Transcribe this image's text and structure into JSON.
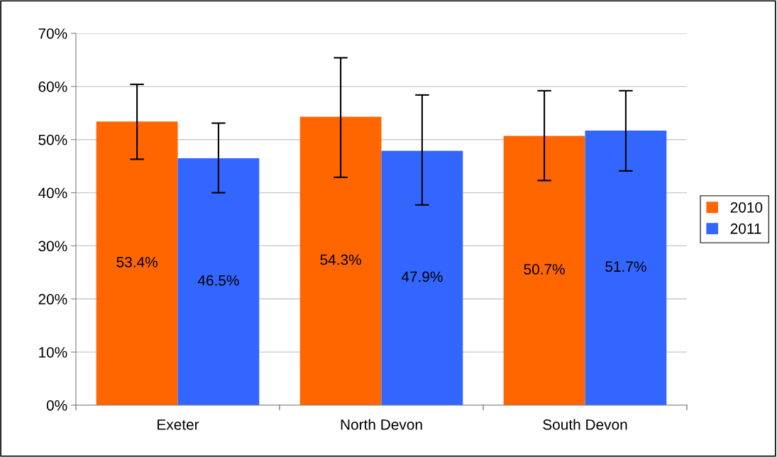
{
  "chart_data": {
    "type": "bar",
    "categories": [
      "Exeter",
      "North Devon",
      "South Devon"
    ],
    "series": [
      {
        "name": "2010",
        "color": "#ff6600",
        "values": [
          53.4,
          54.3,
          50.7
        ],
        "value_labels": [
          "53.4%",
          "54.3%",
          "50.7%"
        ],
        "errors": [
          [
            46.3,
            60.4
          ],
          [
            42.9,
            65.4
          ],
          [
            42.3,
            59.2
          ]
        ]
      },
      {
        "name": "2011",
        "color": "#3366ff",
        "values": [
          46.5,
          47.9,
          51.7
        ],
        "value_labels": [
          "46.5%",
          "47.9%",
          "51.7%"
        ],
        "errors": [
          [
            40.0,
            53.1
          ],
          [
            37.7,
            58.4
          ],
          [
            44.1,
            59.2
          ]
        ]
      }
    ],
    "ylim": [
      0,
      70
    ],
    "yticks": [
      {
        "value": 0,
        "label": "0%"
      },
      {
        "value": 10,
        "label": "10%"
      },
      {
        "value": 20,
        "label": "20%"
      },
      {
        "value": 30,
        "label": "30%"
      },
      {
        "value": 40,
        "label": "40%"
      },
      {
        "value": 50,
        "label": "50%"
      },
      {
        "value": 60,
        "label": "60%"
      },
      {
        "value": 70,
        "label": "70%"
      }
    ],
    "grid": "y",
    "legend": "right"
  }
}
